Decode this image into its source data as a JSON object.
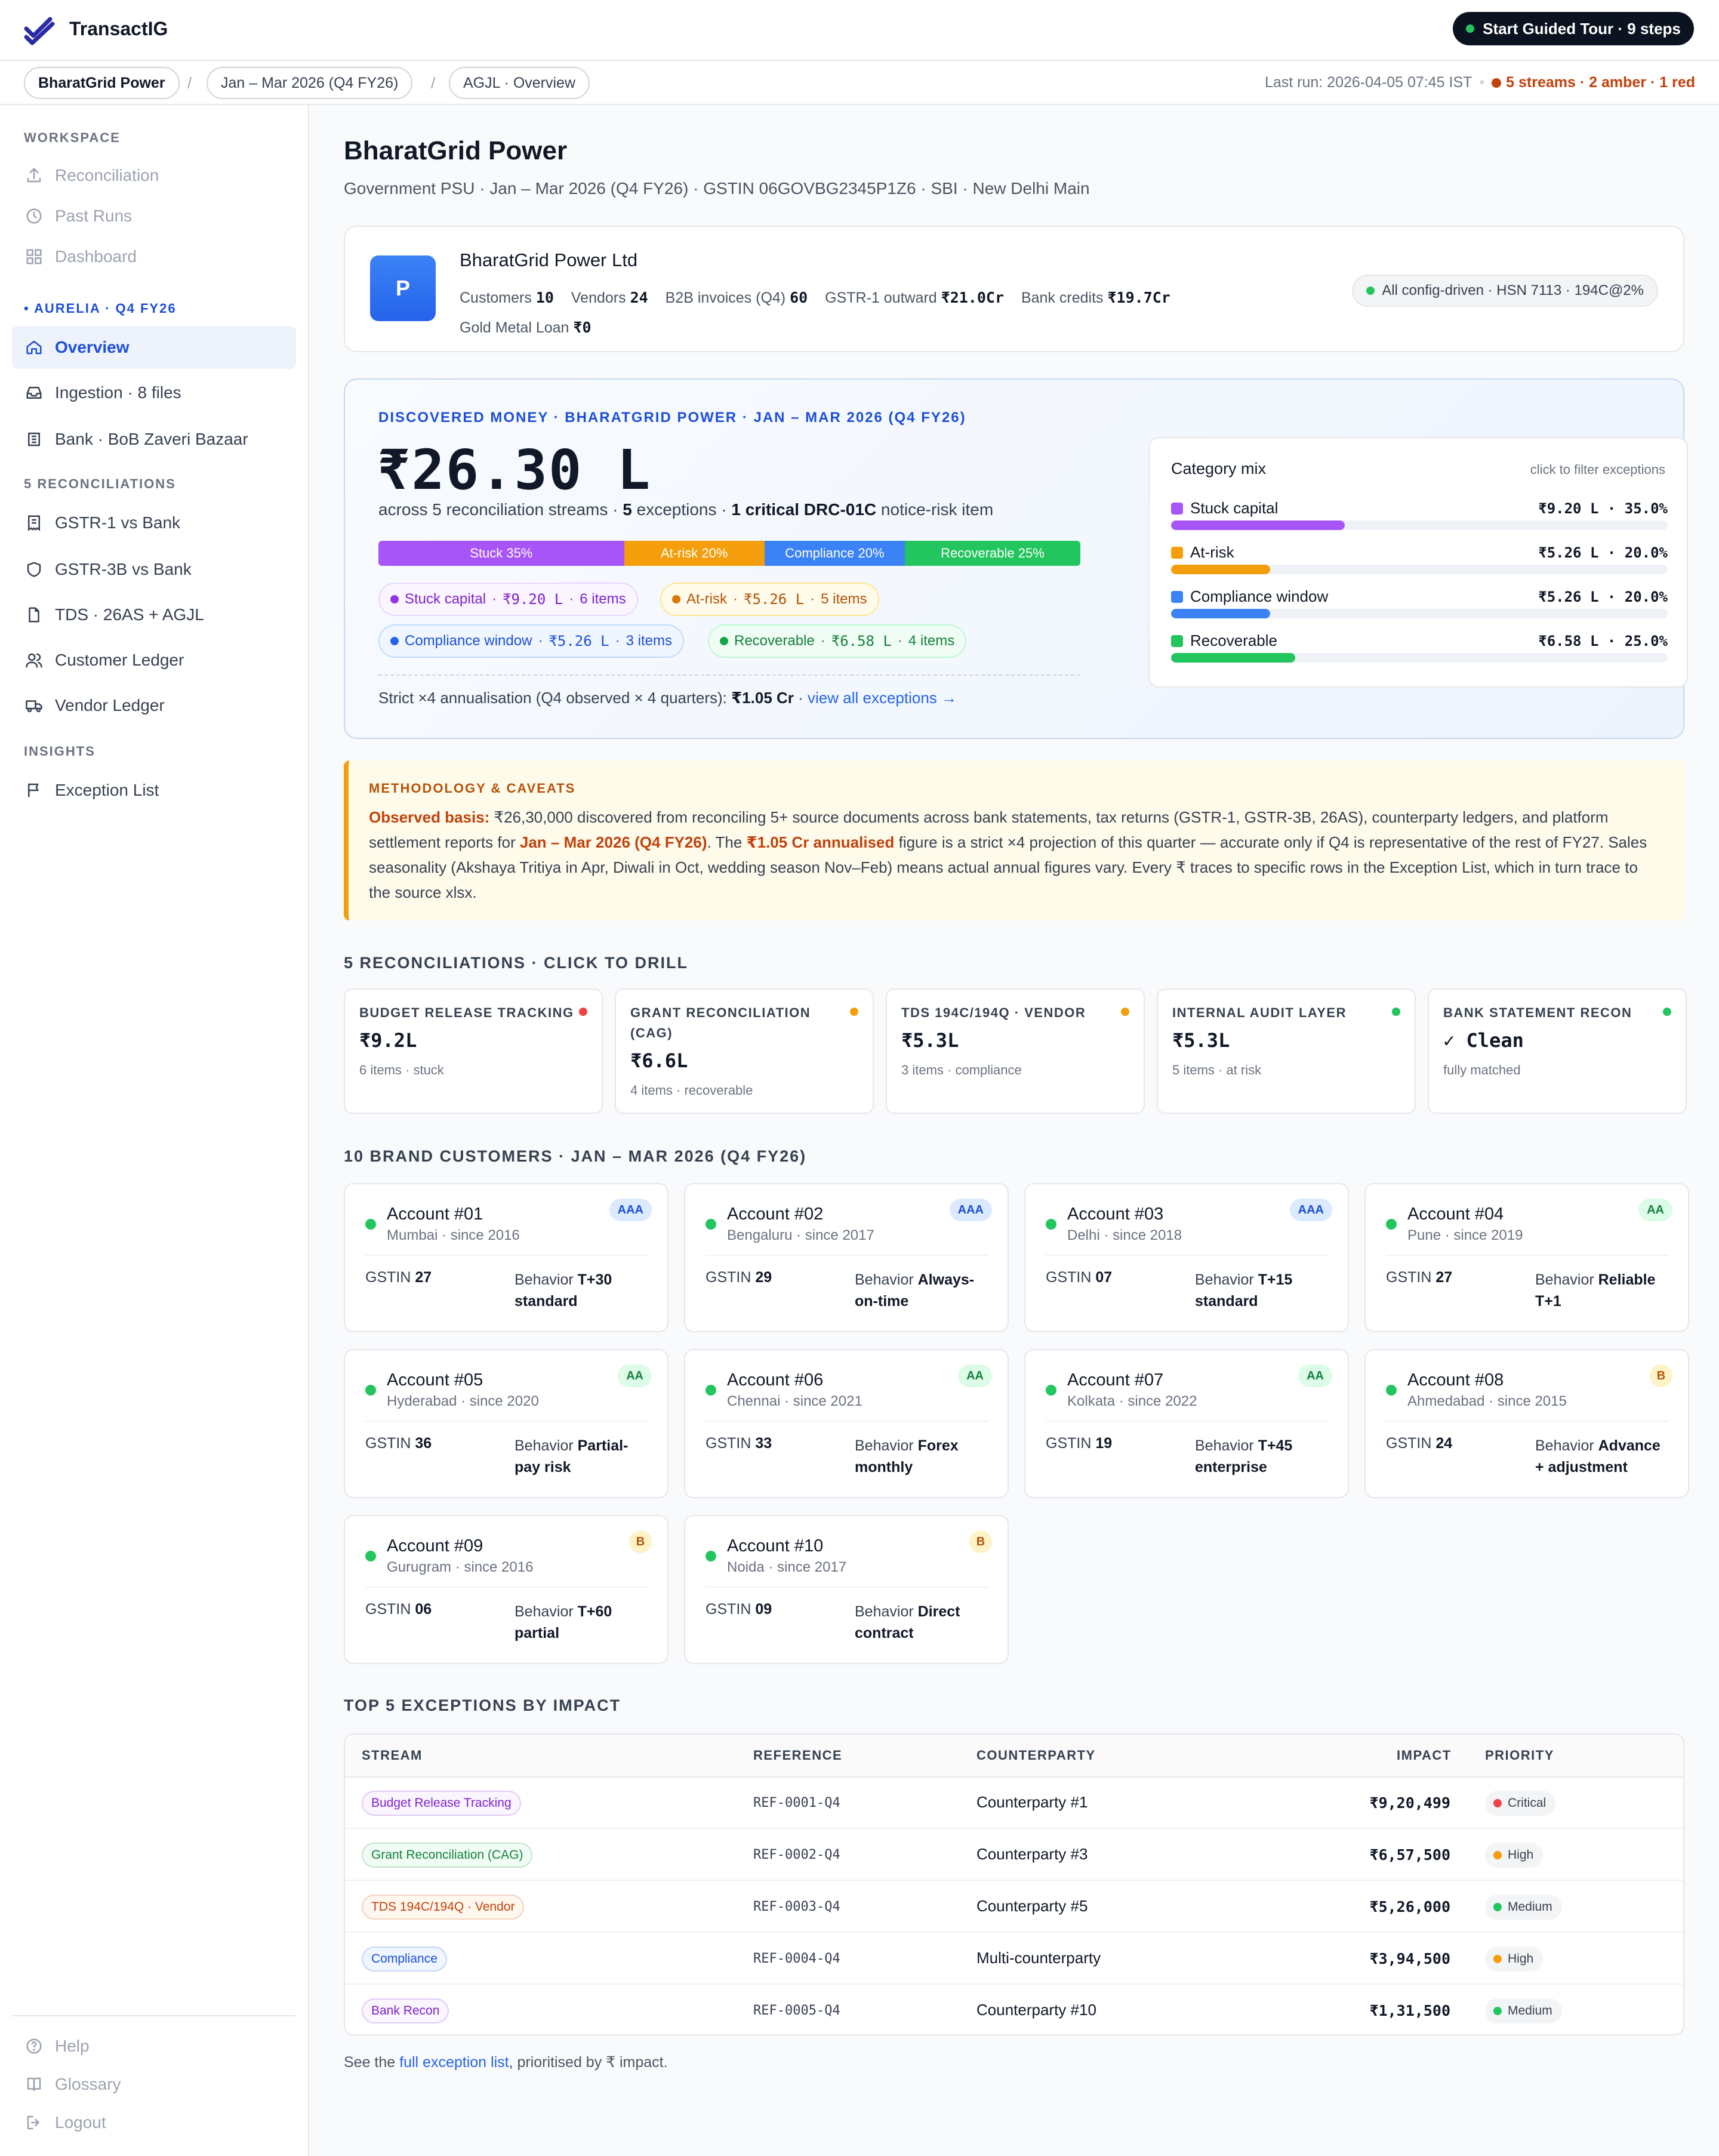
{
  "app": {
    "brand": "TransactIG"
  },
  "topbar": {
    "tour_label": "Start Guided Tour · 9 steps"
  },
  "breadcrumb": {
    "items": [
      "BharatGrid Power",
      "Jan – Mar 2026 (Q4 FY26)",
      "AGJL · Overview"
    ],
    "separator": "/",
    "last_run": "Last run: 2026-04-05 07:45 IST",
    "status": "5 streams · 2 amber · 1 red"
  },
  "sidebar": {
    "workspace_heading": "WORKSPACE",
    "workspace_items": [
      {
        "label": "Reconciliation",
        "icon": "upload-icon"
      },
      {
        "label": "Past Runs",
        "icon": "clock-icon"
      },
      {
        "label": "Dashboard",
        "icon": "grid-icon"
      }
    ],
    "client_heading": "AURELIA · Q4 FY26",
    "client_items": [
      {
        "label": "Overview",
        "icon": "home-icon"
      },
      {
        "label": "Ingestion · 8 files",
        "icon": "inbox-icon"
      },
      {
        "label": "Bank · BoB Zaveri Bazaar",
        "icon": "bank-icon"
      }
    ],
    "recon_heading": "5 RECONCILIATIONS",
    "recon_items": [
      {
        "label": "GSTR-1 vs Bank",
        "icon": "receipt-icon"
      },
      {
        "label": "GSTR-3B vs Bank",
        "icon": "shield-icon"
      },
      {
        "label": "TDS · 26AS + AGJL",
        "icon": "file-icon"
      },
      {
        "label": "Customer Ledger",
        "icon": "users-icon"
      },
      {
        "label": "Vendor Ledger",
        "icon": "truck-icon"
      }
    ],
    "insights_heading": "INSIGHTS",
    "insights_items": [
      {
        "label": "Exception List",
        "icon": "flag-icon"
      }
    ],
    "footer_items": [
      {
        "label": "Help",
        "icon": "help-icon"
      },
      {
        "label": "Glossary",
        "icon": "book-icon"
      },
      {
        "label": "Logout",
        "icon": "logout-icon"
      }
    ]
  },
  "page": {
    "title": "BharatGrid Power",
    "subtitle": "Government PSU · Jan – Mar 2026 (Q4 FY26) · GSTIN 06GOVBG2345P1Z6 · SBI · New Delhi Main"
  },
  "company": {
    "avatar_letter": "P",
    "name": "BharatGrid Power Ltd",
    "stats": [
      {
        "label": "Customers",
        "value": "10"
      },
      {
        "label": "Vendors",
        "value": "24"
      },
      {
        "label": "B2B invoices (Q4)",
        "value": "60"
      },
      {
        "label": "GSTR-1 outward",
        "value": "₹21.0Cr"
      },
      {
        "label": "Bank credits",
        "value": "₹19.7Cr"
      },
      {
        "label": "Gold Metal Loan",
        "value": "₹0"
      }
    ],
    "config_pill": "All config-driven · HSN 7113 · 194C@2%"
  },
  "discovered": {
    "label": "DISCOVERED MONEY · BHARATGRID POWER · JAN – MAR 2026 (Q4 FY26)",
    "amount": "₹26.30 L",
    "line_pre": "across 5 reconciliation streams · ",
    "line_exc_num": "5",
    "line_exc": " exceptions · ",
    "line_crit": "1 critical DRC-01C",
    "line_post": " notice-risk item",
    "mix": [
      {
        "label": "Stuck 35%",
        "share": 35,
        "color": "#a855f7"
      },
      {
        "label": "At-risk 20%",
        "share": 20,
        "color": "#f59e0b"
      },
      {
        "label": "Compliance 20%",
        "share": 20,
        "color": "#3b82f6"
      },
      {
        "label": "Recoverable 25%",
        "share": 25,
        "color": "#22c55e"
      }
    ],
    "tags": [
      {
        "name": "Stuck capital",
        "amount": "₹9.20 L",
        "items": "6 items"
      },
      {
        "name": "At-risk",
        "amount": "₹5.26 L",
        "items": "5 items"
      },
      {
        "name": "Compliance window",
        "amount": "₹5.26 L",
        "items": "3 items"
      },
      {
        "name": "Recoverable",
        "amount": "₹6.58 L",
        "items": "4 items"
      }
    ],
    "annual_pre": "Strict ×4 annualisation (Q4 observed × 4 quarters): ",
    "annual_val": "₹1.05 Cr",
    "annual_link": "view all exceptions →"
  },
  "category_mix": {
    "title": "Category mix",
    "hint": "click to filter exceptions",
    "rows": [
      {
        "name": "Stuck capital",
        "value": "₹9.20 L · 35.0%",
        "share": 35,
        "color": "#a855f7"
      },
      {
        "name": "At-risk",
        "value": "₹5.26 L · 20.0%",
        "share": 20,
        "color": "#f59e0b"
      },
      {
        "name": "Compliance window",
        "value": "₹5.26 L · 20.0%",
        "share": 20,
        "color": "#3b82f6"
      },
      {
        "name": "Recoverable",
        "value": "₹6.58 L · 25.0%",
        "share": 25,
        "color": "#22c55e"
      }
    ]
  },
  "methodology": {
    "title": "METHODOLOGY & CAVEATS",
    "basis_label": "Observed basis:",
    "t1": " ₹26,30,000 discovered from reconciling 5+ source documents across bank statements, tax returns (GSTR-1, GSTR-3B, 26AS), counterparty ledgers, and platform settlement reports for ",
    "period": "Jan – Mar 2026 (Q4 FY26)",
    "t2": ". The ",
    "annual": "₹1.05 Cr annualised",
    "t3": " figure is a strict ×4 projection of this quarter — accurate only if Q4 is representative of the rest of FY27. Sales seasonality (Akshaya Tritiya in Apr, Diwali in Oct, wedding season Nov–Feb) means actual annual figures vary. Every ₹ traces to specific rows in the Exception List, which in turn trace to the source xlsx."
  },
  "recons": {
    "heading": "5 RECONCILIATIONS · CLICK TO DRILL",
    "cards": [
      {
        "title": "BUDGET RELEASE TRACKING",
        "value": "₹9.2L",
        "sub": "6 items · stuck",
        "status": "#ef4444"
      },
      {
        "title": "GRANT RECONCILIATION (CAG)",
        "value": "₹6.6L",
        "sub": "4 items · recoverable",
        "status": "#f59e0b"
      },
      {
        "title": "TDS 194C/194Q · VENDOR",
        "value": "₹5.3L",
        "sub": "3 items · compliance",
        "status": "#f59e0b"
      },
      {
        "title": "INTERNAL AUDIT LAYER",
        "value": "₹5.3L",
        "sub": "5 items · at risk",
        "status": "#22c55e"
      },
      {
        "title": "BANK STATEMENT RECON",
        "value": "✓ Clean",
        "sub": "fully matched",
        "status": "#22c55e"
      }
    ]
  },
  "customers": {
    "heading": "10 BRAND CUSTOMERS · JAN – MAR 2026 (Q4 FY26)",
    "gstin_label": "GSTIN",
    "behavior_label": "Behavior",
    "cards": [
      {
        "name": "Account #01",
        "sub": "Mumbai · since 2016",
        "rating": "AAA",
        "gstin": "27",
        "behavior": "T+30 standard"
      },
      {
        "name": "Account #02",
        "sub": "Bengaluru · since 2017",
        "rating": "AAA",
        "gstin": "29",
        "behavior": "Always-on-time"
      },
      {
        "name": "Account #03",
        "sub": "Delhi · since 2018",
        "rating": "AAA",
        "gstin": "07",
        "behavior": "T+15 standard"
      },
      {
        "name": "Account #04",
        "sub": "Pune · since 2019",
        "rating": "AA",
        "gstin": "27",
        "behavior": "Reliable T+1"
      },
      {
        "name": "Account #05",
        "sub": "Hyderabad · since 2020",
        "rating": "AA",
        "gstin": "36",
        "behavior": "Partial-pay risk"
      },
      {
        "name": "Account #06",
        "sub": "Chennai · since 2021",
        "rating": "AA",
        "gstin": "33",
        "behavior": "Forex monthly"
      },
      {
        "name": "Account #07",
        "sub": "Kolkata · since 2022",
        "rating": "AA",
        "gstin": "19",
        "behavior": "T+45 enterprise"
      },
      {
        "name": "Account #08",
        "sub": "Ahmedabad · since 2015",
        "rating": "B",
        "gstin": "24",
        "behavior": "Advance + adjustment"
      },
      {
        "name": "Account #09",
        "sub": "Gurugram · since 2016",
        "rating": "B",
        "gstin": "06",
        "behavior": "T+60 partial"
      },
      {
        "name": "Account #10",
        "sub": "Noida · since 2017",
        "rating": "B",
        "gstin": "09",
        "behavior": "Direct contract"
      }
    ]
  },
  "exceptions": {
    "heading": "TOP 5 EXCEPTIONS BY IMPACT",
    "columns": [
      "STREAM",
      "REFERENCE",
      "COUNTERPARTY",
      "IMPACT",
      "PRIORITY"
    ],
    "rows": [
      {
        "stream": "Budget Release Tracking",
        "stream_color": "#7e22ce",
        "stream_bg": "#faf5ff",
        "ref": "REF-0001-Q4",
        "cp": "Counterparty #1",
        "impact": "₹9,20,499",
        "priority": "Critical",
        "pcolor": "#ef4444"
      },
      {
        "stream": "Grant Reconciliation (CAG)",
        "stream_color": "#15803d",
        "stream_bg": "#f0fdf4",
        "ref": "REF-0002-Q4",
        "cp": "Counterparty #3",
        "impact": "₹6,57,500",
        "priority": "High",
        "pcolor": "#f59e0b"
      },
      {
        "stream": "TDS 194C/194Q · Vendor",
        "stream_color": "#c2410c",
        "stream_bg": "#fff7ed",
        "ref": "REF-0003-Q4",
        "cp": "Counterparty #5",
        "impact": "₹5,26,000",
        "priority": "Medium",
        "pcolor": "#22c55e"
      },
      {
        "stream": "Compliance",
        "stream_color": "#1d4ed8",
        "stream_bg": "#eff6ff",
        "ref": "REF-0004-Q4",
        "cp": "Multi-counterparty",
        "impact": "₹3,94,500",
        "priority": "High",
        "pcolor": "#f59e0b"
      },
      {
        "stream": "Bank Recon",
        "stream_color": "#7e22ce",
        "stream_bg": "#faf5ff",
        "ref": "REF-0005-Q4",
        "cp": "Counterparty #10",
        "impact": "₹1,31,500",
        "priority": "Medium",
        "pcolor": "#22c55e"
      }
    ]
  },
  "footnote": {
    "pre": "See the ",
    "link": "full exception list",
    "post": ", prioritised by ₹ impact."
  }
}
